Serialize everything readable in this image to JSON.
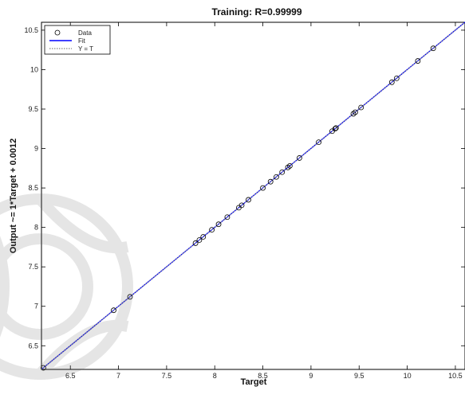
{
  "chart_data": {
    "type": "scatter",
    "title": "Training: R=0.99999",
    "xlabel": "Target",
    "ylabel": "Output ~= 1*Target + 0.0012",
    "xlim": [
      6.2,
      10.6
    ],
    "ylim": [
      6.2,
      10.6
    ],
    "xticks": [
      "6.5",
      "7",
      "7.5",
      "8",
      "8.5",
      "9",
      "9.5",
      "10",
      "10.5"
    ],
    "yticks": [
      "6.5",
      "7",
      "7.5",
      "8",
      "8.5",
      "9",
      "9.5",
      "10",
      "10.5"
    ],
    "legend": {
      "position": "top-left",
      "entries": [
        "Data",
        "Fit",
        "Y = T"
      ]
    },
    "series": [
      {
        "name": "Data",
        "marker": "circle",
        "color": "#000000",
        "x": [
          6.22,
          6.95,
          7.12,
          7.8,
          7.84,
          7.88,
          7.97,
          8.04,
          8.13,
          8.25,
          8.28,
          8.35,
          8.5,
          8.58,
          8.64,
          8.7,
          8.76,
          8.78,
          8.88,
          9.08,
          9.22,
          9.25,
          9.26,
          9.44,
          9.46,
          9.52,
          9.84,
          9.89,
          10.11,
          10.27
        ],
        "y": [
          6.22,
          6.95,
          7.12,
          7.8,
          7.84,
          7.88,
          7.97,
          8.04,
          8.13,
          8.25,
          8.28,
          8.35,
          8.5,
          8.58,
          8.64,
          8.7,
          8.76,
          8.78,
          8.88,
          9.08,
          9.22,
          9.25,
          9.26,
          9.44,
          9.46,
          9.52,
          9.84,
          9.89,
          10.11,
          10.27
        ]
      },
      {
        "name": "Fit",
        "type": "line",
        "color": "#0000ff",
        "slope": 1,
        "intercept": 0.0012
      },
      {
        "name": "Y = T",
        "type": "line",
        "style": "dotted",
        "color": "#999999",
        "slope": 1,
        "intercept": 0
      }
    ],
    "grid": false
  }
}
